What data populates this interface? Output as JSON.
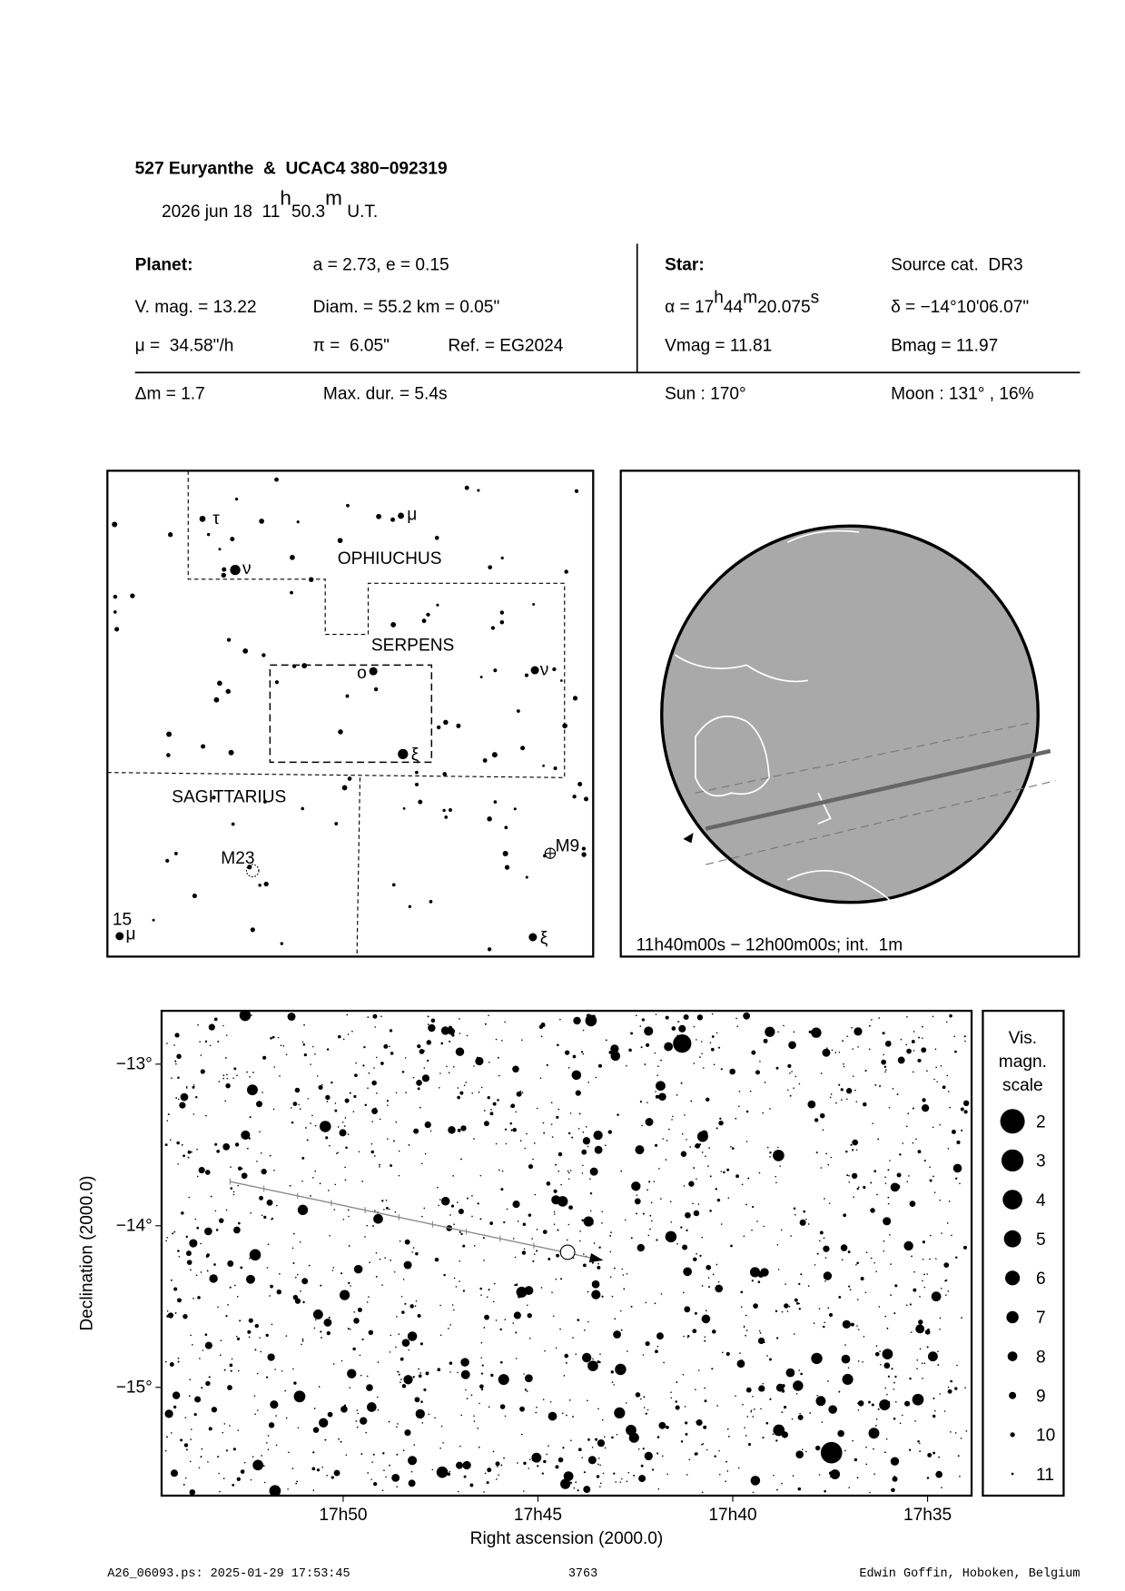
{
  "header": {
    "title": "527 Euryanthe  &  UCAC4 380−092319",
    "date": [
      "2026 jun 18  11",
      "h",
      "50.3",
      "m",
      " U.T."
    ]
  },
  "planet": {
    "heading": "Planet:",
    "orbit": "a = 2.73, e = 0.15",
    "vmag": "V. mag. = 13.22",
    "diam": "Diam. = 55.2 km = 0.05\"",
    "motion": "μ =  34.58\"/h",
    "parallax": "π =  6.05\"",
    "ref": "Ref. = EG2024"
  },
  "star": {
    "heading": "Star:",
    "source": "Source cat.  DR3",
    "ra": [
      "α = 17",
      "h",
      "44",
      "m",
      "20.075",
      "s"
    ],
    "dec": "δ = −14°10'06.07\"",
    "vmag": "Vmag = 11.81",
    "bmag": "Bmag = 11.97"
  },
  "event": {
    "dm": "Δm = 1.7",
    "max_dur": "Max. dur. = 5.4s",
    "sun": "Sun : 170°",
    "moon": "Moon : 131° , 16%"
  },
  "finder": {
    "labels": [
      "τ",
      "μ",
      "ν",
      "OPHIUCHUS",
      "SERPENS",
      "ο",
      "ν",
      "ξ",
      "SAGITTARIUS",
      "M23",
      "M9",
      "15",
      "μ",
      "ξ"
    ]
  },
  "globe": {
    "caption": "11h40m00s − 12h00m00s; int.  1m"
  },
  "star_chart": {
    "xlabel": "Right ascension (2000.0)",
    "ylabel": "Declination (2000.0)",
    "xlim": [
      1074.66,
      1053.87
    ],
    "ylim": [
      -12.67,
      -15.67
    ],
    "xticks": [
      {
        "value": 1070,
        "label": "17h50"
      },
      {
        "value": 1065,
        "label": "17h45"
      },
      {
        "value": 1060,
        "label": "17h40"
      },
      {
        "value": 1055,
        "label": "17h35"
      }
    ],
    "yticks": [
      {
        "value": -13,
        "label": "−13°"
      },
      {
        "value": -14,
        "label": "−14°"
      },
      {
        "value": -15,
        "label": "−15°"
      }
    ],
    "mag_scale": {
      "title": [
        "Vis.",
        "magn.",
        "scale"
      ],
      "magnitudes": [
        2,
        3,
        4,
        5,
        6,
        7,
        8,
        9,
        10,
        11
      ]
    }
  },
  "footer": {
    "file": "A26_06093.ps: 2025-01-29 17:53:45",
    "page": "3763",
    "author": "Edwin Goffin, Hoboken, Belgium"
  }
}
